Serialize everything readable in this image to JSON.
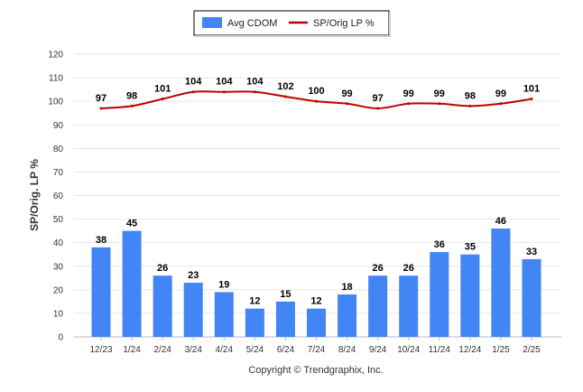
{
  "chart_data": {
    "type": "bar",
    "categories": [
      "12/23",
      "1/24",
      "2/24",
      "3/24",
      "4/24",
      "5/24",
      "6/24",
      "7/24",
      "8/24",
      "9/24",
      "10/24",
      "11/24",
      "12/24",
      "1/25",
      "2/25"
    ],
    "series": [
      {
        "name": "Avg CDOM",
        "type": "bar",
        "color": "#4285f4",
        "values": [
          38,
          45,
          26,
          23,
          19,
          12,
          15,
          12,
          18,
          26,
          26,
          36,
          35,
          46,
          33
        ]
      },
      {
        "name": "SP/Orig LP %",
        "type": "line",
        "color": "#c00000",
        "values": [
          97,
          98,
          101,
          104,
          104,
          104,
          102,
          100,
          99,
          97,
          99,
          99,
          98,
          99,
          101
        ]
      }
    ],
    "ylabel": "SP/Orig. LP %",
    "xlabel": "",
    "ylim": [
      0,
      120
    ],
    "yticks": [
      0,
      10,
      20,
      30,
      40,
      50,
      60,
      70,
      80,
      90,
      100,
      110,
      120
    ],
    "grid": true,
    "legend_position": "top-center",
    "data_labels": true
  },
  "footer": {
    "copyright": "Copyright © Trendgraphix, Inc."
  }
}
